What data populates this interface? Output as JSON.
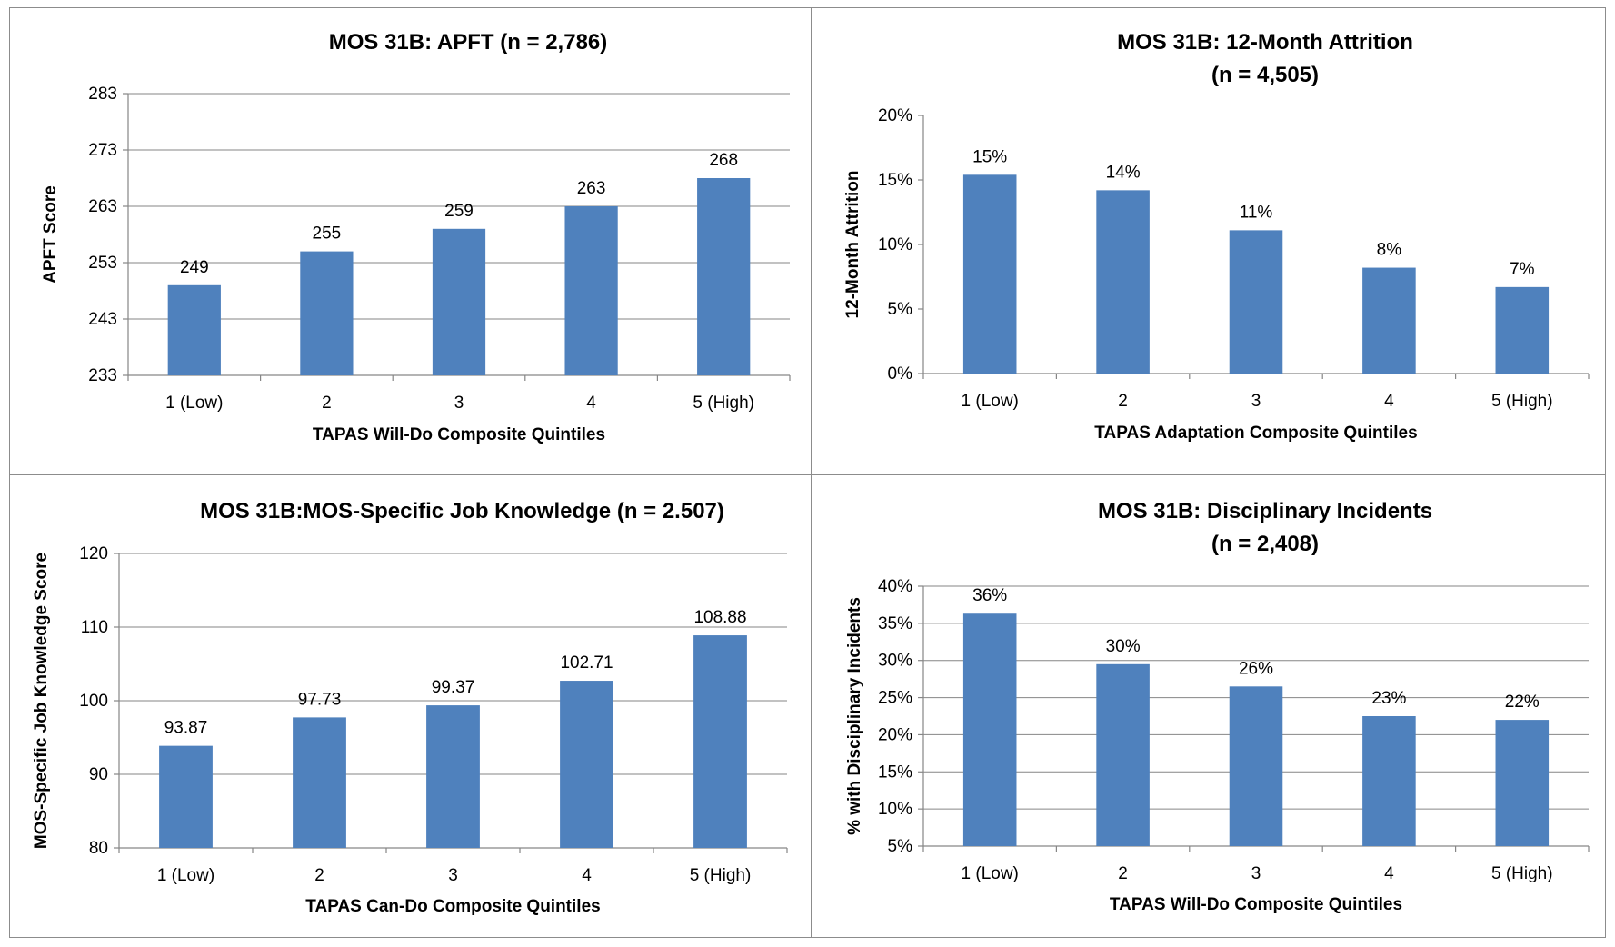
{
  "chart_data": [
    {
      "type": "bar",
      "title": [
        "MOS 31B: APFT (n = 2,786)"
      ],
      "xlabel": "TAPAS Will-Do Composite Quintiles",
      "ylabel": "APFT Score",
      "categories": [
        "1 (Low)",
        "2",
        "3",
        "4",
        "5 (High)"
      ],
      "values": [
        249,
        255,
        259,
        263,
        268
      ],
      "data_labels": [
        "249",
        "255",
        "259",
        "263",
        "268"
      ],
      "yticks": [
        "233",
        "243",
        "253",
        "263",
        "273",
        "283"
      ],
      "ylim": [
        233,
        283
      ],
      "grid": true,
      "color": "#4f81bd"
    },
    {
      "type": "bar",
      "title": [
        "MOS 31B:  12-Month Attrition",
        "(n = 4,505)"
      ],
      "xlabel": "TAPAS Adaptation Composite Quintiles",
      "ylabel": "12-Month Attrition",
      "categories": [
        "1 (Low)",
        "2",
        "3",
        "4",
        "5 (High)"
      ],
      "values": [
        15.4,
        14.2,
        11.1,
        8.2,
        6.7
      ],
      "data_labels": [
        "15%",
        "14%",
        "11%",
        "8%",
        "7%"
      ],
      "yticks": [
        "0%",
        "5%",
        "10%",
        "15%",
        "20%"
      ],
      "ylim": [
        0,
        20
      ],
      "grid": false,
      "color": "#4f81bd"
    },
    {
      "type": "bar",
      "title": [
        "MOS 31B:MOS-Specific Job Knowledge (n = 2.507)"
      ],
      "xlabel": "TAPAS Can-Do Composite Quintiles",
      "ylabel": "MOS-Specific Job Knowledge Score",
      "categories": [
        "1 (Low)",
        "2",
        "3",
        "4",
        "5 (High)"
      ],
      "values": [
        93.87,
        97.73,
        99.37,
        102.71,
        108.88
      ],
      "data_labels": [
        "93.87",
        "97.73",
        "99.37",
        "102.71",
        "108.88"
      ],
      "yticks": [
        "80",
        "90",
        "100",
        "110",
        "120"
      ],
      "ylim": [
        80,
        120
      ],
      "grid": true,
      "color": "#4f81bd"
    },
    {
      "type": "bar",
      "title": [
        "MOS 31B: Disciplinary Incidents",
        "(n = 2,408)"
      ],
      "xlabel": "TAPAS Will-Do Composite Quintiles",
      "ylabel": "% with Disciplinary Incidents",
      "categories": [
        "1 (Low)",
        "2",
        "3",
        "4",
        "5 (High)"
      ],
      "values": [
        36.3,
        29.5,
        26.5,
        22.5,
        22.0
      ],
      "data_labels": [
        "36%",
        "30%",
        "26%",
        "23%",
        "22%"
      ],
      "yticks": [
        "5%",
        "10%",
        "15%",
        "20%",
        "25%",
        "30%",
        "35%",
        "40%"
      ],
      "ylim": [
        5,
        40
      ],
      "grid": true,
      "color": "#4f81bd"
    }
  ]
}
